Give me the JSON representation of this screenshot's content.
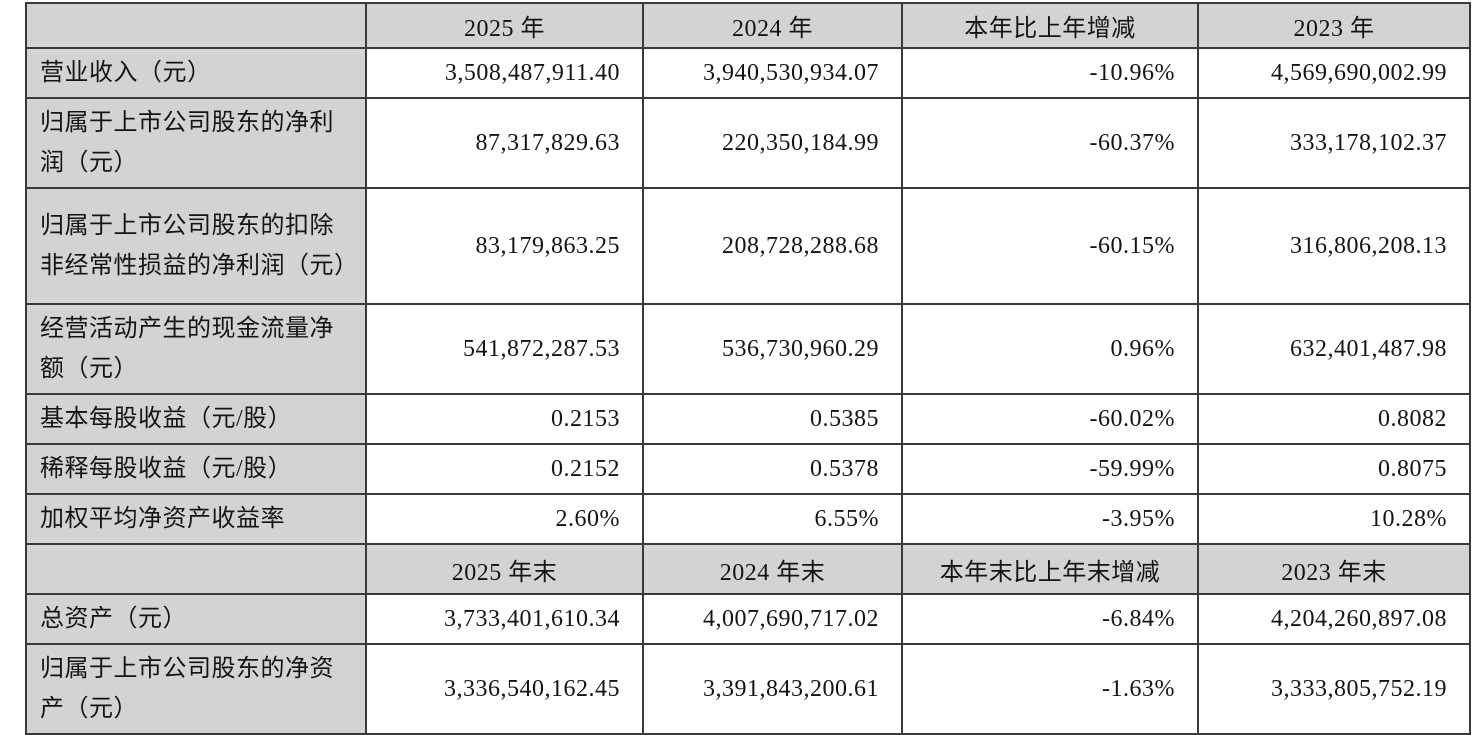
{
  "document": {
    "type": "financial-summary-table",
    "language": "zh-CN"
  },
  "colors": {
    "header_background": "#d3d3d3",
    "label_column_background": "#d3d3d3",
    "data_cell_background": "#ffffff",
    "border": "#3a3a3a",
    "text": "#141414"
  },
  "table": {
    "sections": [
      {
        "header": {
          "corner_label": "",
          "cols": [
            "2025 年",
            "2024 年",
            "本年比上年增减",
            "2023 年"
          ]
        },
        "rows": [
          {
            "label": "营业收入（元）",
            "values": [
              "3,508,487,911.40",
              "3,940,530,934.07",
              "-10.96%",
              "4,569,690,002.99"
            ]
          },
          {
            "label": "归属于上市公司股东的净利润（元）",
            "values": [
              "87,317,829.63",
              "220,350,184.99",
              "-60.37%",
              "333,178,102.37"
            ]
          },
          {
            "label": "归属于上市公司股东的扣除非经常性损益的净利润（元）",
            "values": [
              "83,179,863.25",
              "208,728,288.68",
              "-60.15%",
              "316,806,208.13"
            ]
          },
          {
            "label": "经营活动产生的现金流量净额（元）",
            "values": [
              "541,872,287.53",
              "536,730,960.29",
              "0.96%",
              "632,401,487.98"
            ]
          },
          {
            "label": "基本每股收益（元/股）",
            "values": [
              "0.2153",
              "0.5385",
              "-60.02%",
              "0.8082"
            ]
          },
          {
            "label": "稀释每股收益（元/股）",
            "values": [
              "0.2152",
              "0.5378",
              "-59.99%",
              "0.8075"
            ]
          },
          {
            "label": "加权平均净资产收益率",
            "values": [
              "2.60%",
              "6.55%",
              "-3.95%",
              "10.28%"
            ]
          }
        ]
      },
      {
        "header": {
          "corner_label": "",
          "cols": [
            "2025 年末",
            "2024 年末",
            "本年末比上年末增减",
            "2023 年末"
          ]
        },
        "rows": [
          {
            "label": "总资产（元）",
            "values": [
              "3,733,401,610.34",
              "4,007,690,717.02",
              "-6.84%",
              "4,204,260,897.08"
            ]
          },
          {
            "label": "归属于上市公司股东的净资产（元）",
            "values": [
              "3,336,540,162.45",
              "3,391,843,200.61",
              "-1.63%",
              "3,333,805,752.19"
            ]
          }
        ]
      }
    ]
  }
}
